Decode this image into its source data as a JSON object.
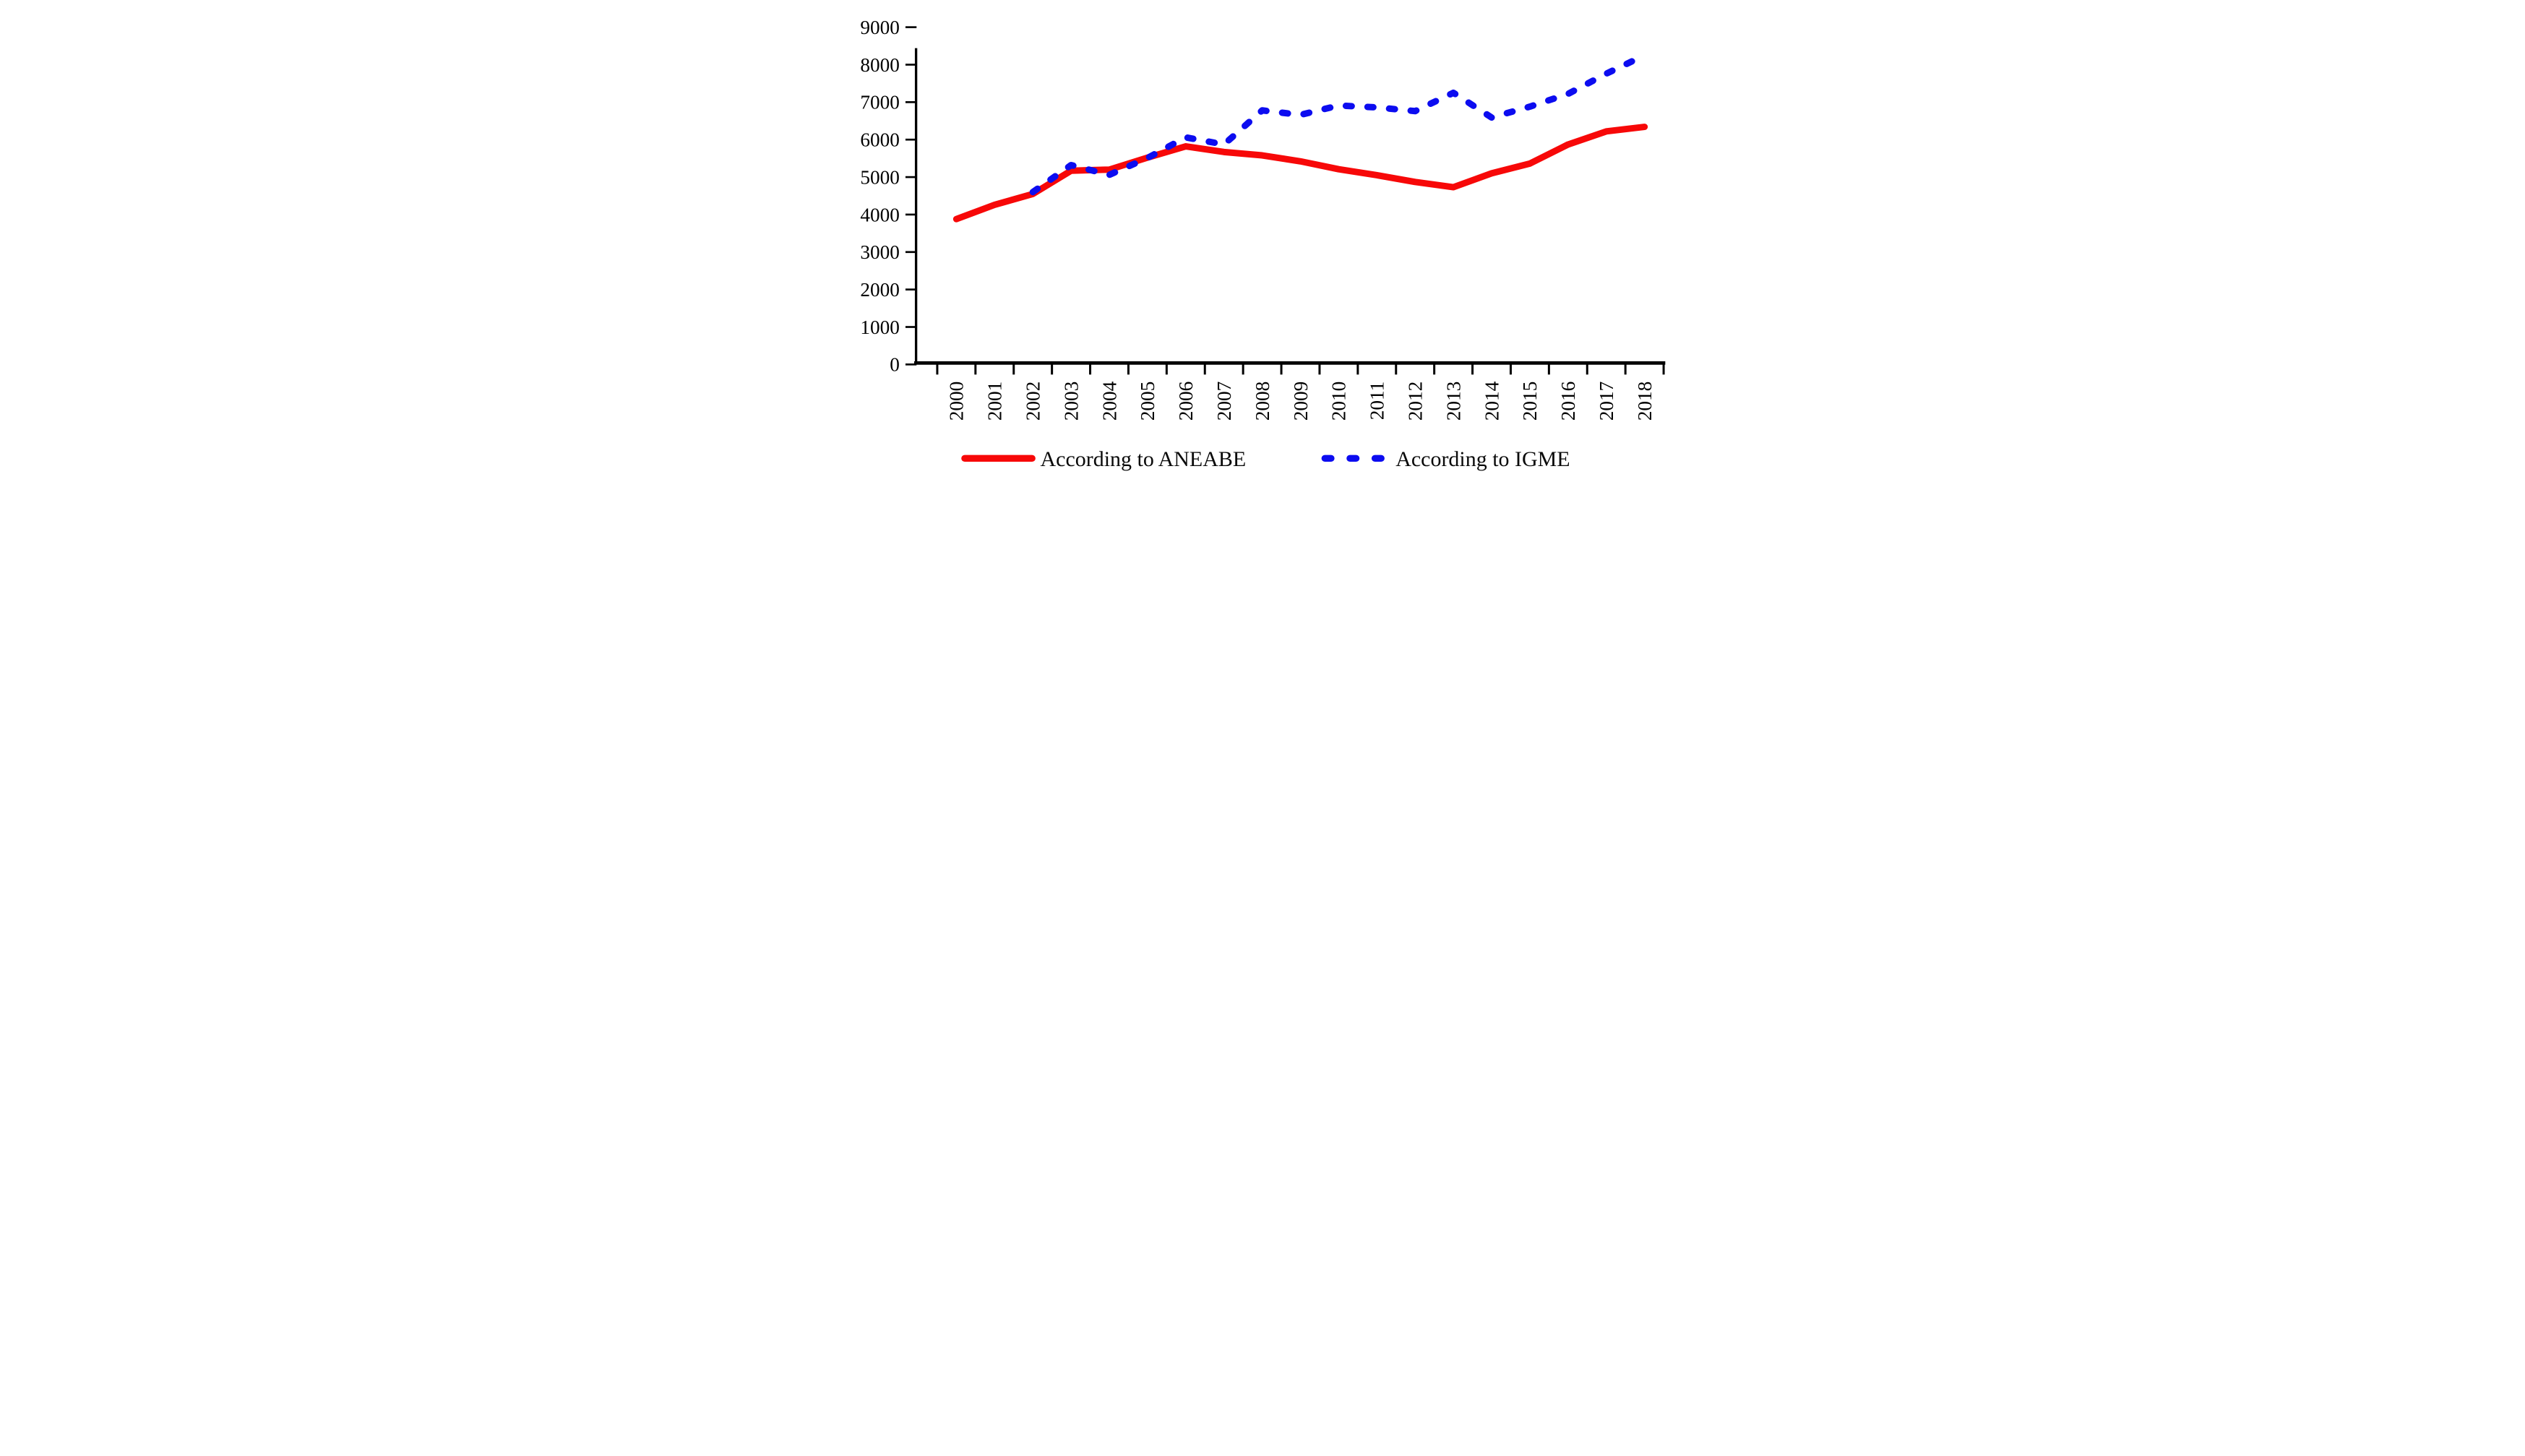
{
  "page": {
    "background": "#ffffff"
  },
  "chart_data": {
    "type": "line",
    "title": "",
    "xlabel": "",
    "ylabel": "",
    "x": [
      2000,
      2001,
      2002,
      2003,
      2004,
      2005,
      2006,
      2007,
      2008,
      2009,
      2010,
      2011,
      2012,
      2013,
      2014,
      2015,
      2016,
      2017,
      2018
    ],
    "ylim": [
      0,
      9000
    ],
    "ytick_step": 1000,
    "grid": false,
    "legend_position": "bottom",
    "axis_color": "#000000",
    "series": [
      {
        "name": "According to ANEABE",
        "color": "#f70808",
        "line_style": "solid",
        "values": [
          3880,
          4260,
          4550,
          5170,
          5200,
          5520,
          5820,
          5670,
          5580,
          5420,
          5210,
          5050,
          4870,
          4730,
          5100,
          5360,
          5870,
          6220,
          6340
        ]
      },
      {
        "name": "According to IGME",
        "color": "#0c0cf0",
        "line_style": "dashed",
        "values": [
          null,
          null,
          4600,
          5320,
          5060,
          5510,
          6060,
          5870,
          6780,
          6660,
          6910,
          6860,
          6760,
          7250,
          6590,
          6880,
          7220,
          7760,
          8250
        ]
      }
    ]
  },
  "legend": {
    "aneabe_label": "According to ANEABE",
    "igme_label": "According to IGME"
  }
}
